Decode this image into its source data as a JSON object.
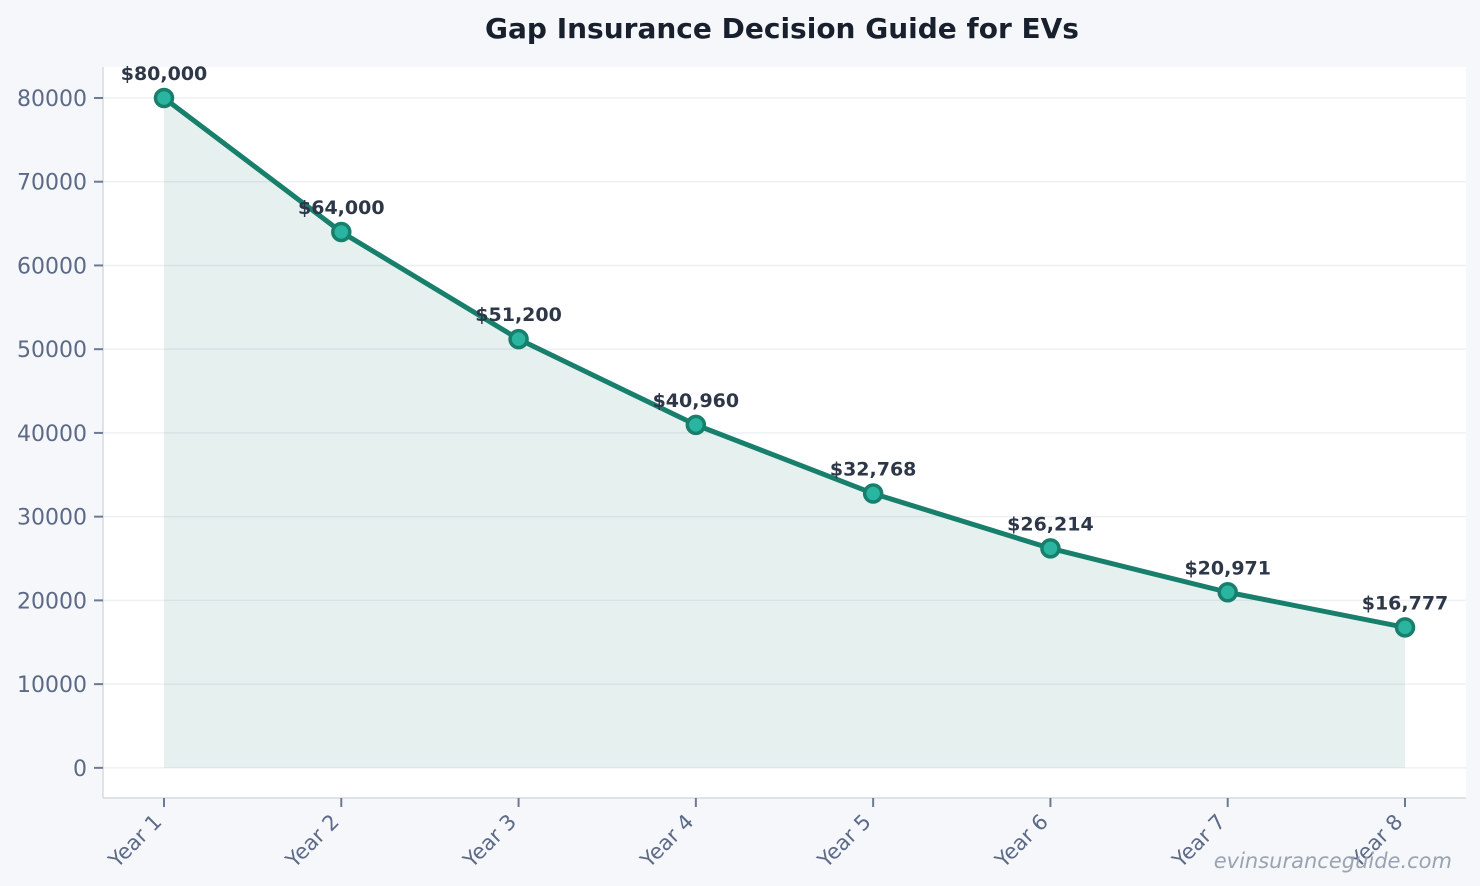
{
  "title": "Gap Insurance Decision Guide for EVs",
  "watermark": "evinsuranceguide.com",
  "chart_data": {
    "type": "area",
    "categories": [
      "Year 1",
      "Year 2",
      "Year 3",
      "Year 4",
      "Year 5",
      "Year 6",
      "Year 7",
      "Year 8"
    ],
    "values": [
      80000,
      64000,
      51200,
      40960,
      32768,
      26214,
      20971,
      16777
    ],
    "point_labels": [
      "$80,000",
      "$64,000",
      "$51,200",
      "$40,960",
      "$32,768",
      "$26,214",
      "$20,971",
      "$16,777"
    ],
    "title": "Gap Insurance Decision Guide for EVs",
    "xlabel": "",
    "ylabel": "",
    "ylim": [
      0,
      80000
    ],
    "yticks": [
      0,
      10000,
      20000,
      30000,
      40000,
      50000,
      60000,
      70000,
      80000
    ],
    "grid": "horizontal",
    "legend": "none",
    "colors": {
      "line": "#177f6c",
      "marker_fill": "#2ab5a0",
      "marker_edge": "#177f6c",
      "area_fill": "rgba(23,127,108,0.11)",
      "figure_bg": "#f5f7fa",
      "plot_bg": "#ffffff",
      "grid": "#edf0f4",
      "spine": "#d5dae1",
      "tick_mark": "#6e7a93",
      "tick_label": "#5c6a87",
      "data_label": "#2d3748",
      "title": "#18202e",
      "watermark": "#9aa3b2"
    }
  }
}
